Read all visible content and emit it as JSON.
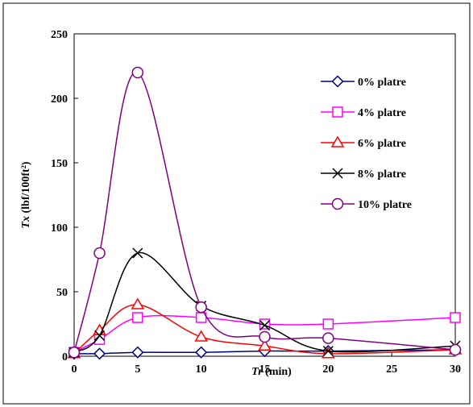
{
  "chart_data": {
    "type": "line",
    "xlabel_var": "Tr",
    "xlabel_unit": " (min)",
    "ylabel_var": "Tx",
    "ylabel_unit": "  (lbf/100ft²)",
    "xlim": [
      0,
      30
    ],
    "ylim": [
      0,
      250
    ],
    "xticks": [
      0,
      5,
      10,
      15,
      20,
      25,
      30
    ],
    "yticks": [
      0,
      50,
      100,
      150,
      200,
      250
    ],
    "grid": false,
    "legend_position": "top-right",
    "series": [
      {
        "name": "0% platre",
        "color": "#000080",
        "marker": "diamond",
        "x": [
          0,
          2,
          5,
          10,
          15,
          20,
          30
        ],
        "y": [
          2,
          2,
          3,
          3,
          4,
          4,
          5
        ]
      },
      {
        "name": "4% platre",
        "color": "#ff00ff",
        "marker": "square",
        "x": [
          0,
          2,
          5,
          10,
          15,
          20,
          30
        ],
        "y": [
          3,
          13,
          30,
          30,
          25,
          25,
          30
        ]
      },
      {
        "name": "6% platre",
        "color": "#ff0000",
        "marker": "triangle",
        "x": [
          0,
          2,
          5,
          10,
          15,
          20,
          30
        ],
        "y": [
          2,
          20,
          40,
          15,
          8,
          2,
          5
        ]
      },
      {
        "name": "8% platre",
        "color": "#000000",
        "marker": "x",
        "x": [
          0,
          2,
          5,
          10,
          15,
          20,
          30
        ],
        "y": [
          3,
          16,
          80,
          39,
          24,
          4,
          8
        ]
      },
      {
        "name": "10% platre",
        "color": "#800080",
        "marker": "circle",
        "x": [
          0,
          2,
          5,
          10,
          15,
          20,
          30
        ],
        "y": [
          3,
          80,
          220,
          38,
          15,
          14,
          5
        ]
      }
    ]
  }
}
